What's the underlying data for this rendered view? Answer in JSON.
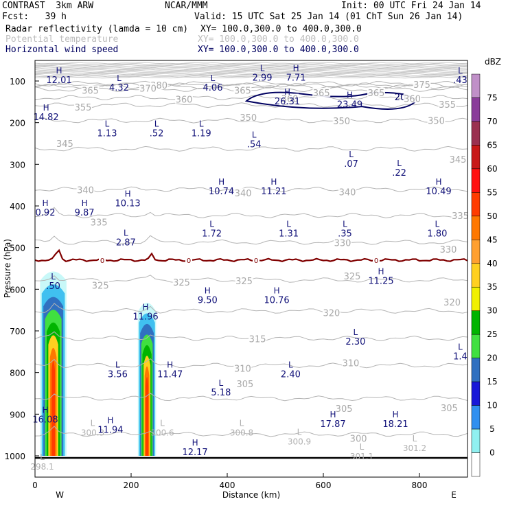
{
  "header": {
    "model": "CONTRAST  3km ARW",
    "center": "NCAR/MMM",
    "init": "Init: 00 UTC Fri 24 Jan 14",
    "fcst": "Fcst:   39 h",
    "valid": "Valid: 15 UTC Sat 25 Jan 14 (01 ChT Sun 26 Jan 14)",
    "fields": [
      {
        "name": "Radar reflectivity (lamda = 10 cm)",
        "xy": "XY= 100.0,300.0 to 400.0,300.0",
        "style": "black"
      },
      {
        "name": "Potential temperature",
        "xy": "XY= 100.0,300.0 to 400.0,300.0",
        "style": "gray"
      },
      {
        "name": "Horizontal wind speed",
        "xy": "XY= 100.0,300.0 to 400.0,300.0",
        "style": "navy"
      }
    ]
  },
  "chart_data": {
    "type": "cross-section",
    "xlabel": "Distance (km)",
    "ylabel": "Pressure (hPa)",
    "xlim": [
      0,
      900
    ],
    "ylim": [
      1010,
      60
    ],
    "x_ticks": [
      0,
      200,
      400,
      600,
      800
    ],
    "y_ticks": [
      100,
      200,
      300,
      400,
      500,
      600,
      700,
      800,
      900,
      1000
    ],
    "x_end_labels": {
      "left": "W",
      "right": "E"
    },
    "colorbar": {
      "title": "dBZ",
      "levels": [
        75,
        70,
        65,
        60,
        55,
        50,
        45,
        40,
        35,
        30,
        25,
        20,
        15,
        10,
        5,
        0
      ],
      "colors": [
        "#c090c8",
        "#8a3c9a",
        "#9a3050",
        "#c81818",
        "#ff1010",
        "#ff3c00",
        "#ff7800",
        "#ffa030",
        "#ffd020",
        "#f0f000",
        "#00b400",
        "#40e040",
        "#3070c0",
        "#1818d8",
        "#3090f0",
        "#90f0f0",
        "#ffffff"
      ]
    },
    "theta_contours": [
      {
        "label": "380",
        "p": 106
      },
      {
        "label": "375",
        "p": 110
      },
      {
        "label": "370",
        "p": 113
      },
      {
        "label": "365",
        "p": 120
      },
      {
        "label": "360",
        "p": 140
      },
      {
        "label": "355",
        "p": 158
      },
      {
        "label": "350",
        "p": 195
      },
      {
        "label": "345",
        "p": 263
      },
      {
        "label": "340",
        "p": 360
      },
      {
        "label": "335",
        "p": 423
      },
      {
        "label": "330",
        "p": 487
      },
      {
        "label": "325",
        "p": 578
      },
      {
        "label": "320",
        "p": 652
      },
      {
        "label": "315",
        "p": 718
      },
      {
        "label": "310",
        "p": 783
      },
      {
        "label": "305",
        "p": 862
      },
      {
        "label": "300",
        "p": 948
      }
    ],
    "theta_labels": [
      {
        "text": "380",
        "x": 258,
        "p": 110
      },
      {
        "text": "375",
        "x": 805,
        "p": 108
      },
      {
        "text": "370",
        "x": 235,
        "p": 117
      },
      {
        "text": "365",
        "x": 115,
        "p": 122
      },
      {
        "text": "365",
        "x": 432,
        "p": 122
      },
      {
        "text": "365",
        "x": 596,
        "p": 128
      },
      {
        "text": "365",
        "x": 710,
        "p": 128
      },
      {
        "text": "360",
        "x": 310,
        "p": 144
      },
      {
        "text": "360",
        "x": 530,
        "p": 142
      },
      {
        "text": "360",
        "x": 785,
        "p": 142
      },
      {
        "text": "355",
        "x": 100,
        "p": 163
      },
      {
        "text": "355",
        "x": 858,
        "p": 156
      },
      {
        "text": "350",
        "x": 444,
        "p": 187
      },
      {
        "text": "350",
        "x": 638,
        "p": 196
      },
      {
        "text": "350",
        "x": 835,
        "p": 195
      },
      {
        "text": "345",
        "x": 62,
        "p": 250
      },
      {
        "text": "345",
        "x": 880,
        "p": 288
      },
      {
        "text": "340",
        "x": 105,
        "p": 361
      },
      {
        "text": "340",
        "x": 433,
        "p": 369
      },
      {
        "text": "340",
        "x": 650,
        "p": 366
      },
      {
        "text": "335",
        "x": 133,
        "p": 439
      },
      {
        "text": "335",
        "x": 885,
        "p": 423
      },
      {
        "text": "330",
        "x": 640,
        "p": 488
      },
      {
        "text": "330",
        "x": 860,
        "p": 504
      },
      {
        "text": "325",
        "x": 136,
        "p": 590
      },
      {
        "text": "325",
        "x": 305,
        "p": 583
      },
      {
        "text": "325",
        "x": 435,
        "p": 580
      },
      {
        "text": "325",
        "x": 660,
        "p": 568
      },
      {
        "text": "320",
        "x": 617,
        "p": 656
      },
      {
        "text": "320",
        "x": 868,
        "p": 631
      },
      {
        "text": "315",
        "x": 463,
        "p": 719
      },
      {
        "text": "310",
        "x": 432,
        "p": 790
      },
      {
        "text": "310",
        "x": 657,
        "p": 777
      },
      {
        "text": "305",
        "x": 437,
        "p": 827
      },
      {
        "text": "305",
        "x": 643,
        "p": 886
      },
      {
        "text": "305",
        "x": 862,
        "p": 885
      },
      {
        "text": "300",
        "x": 673,
        "p": 958
      }
    ],
    "gray_extrema": [
      {
        "type": "L",
        "value": "300.3",
        "x": 120,
        "p": 928
      },
      {
        "type": "L",
        "value": "300.6",
        "x": 265,
        "p": 928
      },
      {
        "type": "L",
        "value": "300.8",
        "x": 430,
        "p": 928
      },
      {
        "type": "L",
        "value": "300.9",
        "x": 550,
        "p": 950
      },
      {
        "type": "L",
        "value": "301.1",
        "x": 680,
        "p": 985
      },
      {
        "type": "L",
        "value": "301.2",
        "x": 790,
        "p": 965
      },
      {
        "type": "L",
        "value": "298.1",
        "x": 15,
        "p": 1010
      }
    ],
    "wind_extrema": [
      {
        "type": "H",
        "value": "12.01",
        "x": 50,
        "p": 82
      },
      {
        "type": "L",
        "value": "4.32",
        "x": 175,
        "p": 100
      },
      {
        "type": "L",
        "value": "4.06",
        "x": 370,
        "p": 100
      },
      {
        "type": "L",
        "value": "2.99",
        "x": 473,
        "p": 76
      },
      {
        "type": "H",
        "value": "7.71",
        "x": 543,
        "p": 76
      },
      {
        "type": "L",
        "value": ".43",
        "x": 885,
        "p": 82
      },
      {
        "type": "H",
        "value": "26.31",
        "x": 525,
        "p": 133
      },
      {
        "type": "H",
        "value": "23.49",
        "x": 655,
        "p": 140
      },
      {
        "type": "H",
        "value": "14.82",
        "x": 23,
        "p": 171
      },
      {
        "type": "L",
        "value": "1.13",
        "x": 150,
        "p": 210
      },
      {
        "type": "L",
        "value": ".52",
        "x": 253,
        "p": 210
      },
      {
        "type": "L",
        "value": "1.19",
        "x": 346,
        "p": 210
      },
      {
        "type": "L",
        "value": ".54",
        "x": 456,
        "p": 236
      },
      {
        "type": "L",
        "value": ".07",
        "x": 658,
        "p": 283
      },
      {
        "type": "L",
        "value": ".22",
        "x": 758,
        "p": 304
      },
      {
        "type": "H",
        "value": "10.74",
        "x": 388,
        "p": 349
      },
      {
        "type": "H",
        "value": "11.21",
        "x": 497,
        "p": 349
      },
      {
        "type": "H",
        "value": "10.49",
        "x": 840,
        "p": 349
      },
      {
        "type": "H",
        "value": "10.13",
        "x": 193,
        "p": 378
      },
      {
        "type": "H",
        "value": "9.87",
        "x": 103,
        "p": 400
      },
      {
        "type": "H",
        "value": "0.92",
        "x": 2,
        "p": 400
      },
      {
        "type": "L",
        "value": "1.72",
        "x": 368,
        "p": 450
      },
      {
        "type": "L",
        "value": "1.31",
        "x": 528,
        "p": 450
      },
      {
        "type": "L",
        "value": ".35",
        "x": 645,
        "p": 450
      },
      {
        "type": "L",
        "value": "1.80",
        "x": 837,
        "p": 450
      },
      {
        "type": "L",
        "value": "2.87",
        "x": 189,
        "p": 472
      },
      {
        "type": "H",
        "value": "11.25",
        "x": 720,
        "p": 564
      },
      {
        "type": "L",
        "value": ".50",
        "x": 38,
        "p": 576
      },
      {
        "type": "H",
        "value": "9.50",
        "x": 359,
        "p": 610
      },
      {
        "type": "H",
        "value": "10.76",
        "x": 503,
        "p": 610
      },
      {
        "type": "H",
        "value": "11.96",
        "x": 230,
        "p": 650
      },
      {
        "type": "L",
        "value": "2.30",
        "x": 667,
        "p": 710
      },
      {
        "type": "L",
        "value": "1.4",
        "x": 885,
        "p": 745
      },
      {
        "type": "L",
        "value": "3.56",
        "x": 172,
        "p": 788
      },
      {
        "type": "H",
        "value": "11.47",
        "x": 281,
        "p": 788
      },
      {
        "type": "L",
        "value": "2.40",
        "x": 532,
        "p": 788
      },
      {
        "type": "L",
        "value": "5.18",
        "x": 387,
        "p": 832
      },
      {
        "type": "H",
        "value": "16.08",
        "x": 2,
        "p": 897
      },
      {
        "type": "H",
        "value": "11.94",
        "x": 157,
        "p": 922
      },
      {
        "type": "H",
        "value": "17.87",
        "x": 620,
        "p": 908
      },
      {
        "type": "H",
        "value": "18.21",
        "x": 750,
        "p": 908
      },
      {
        "type": "H",
        "value": "12.17",
        "x": 333,
        "p": 975
      }
    ],
    "jet_contour_label": "20",
    "freezing_line": {
      "label": "0",
      "p": 530,
      "label_x": [
        140,
        320,
        460,
        710
      ]
    },
    "storm_cells": [
      {
        "x_center": 38,
        "width_km": 55,
        "top_p": 555,
        "base_p": 1000
      },
      {
        "x_center": 233,
        "width_km": 38,
        "top_p": 630,
        "base_p": 1000
      }
    ]
  }
}
